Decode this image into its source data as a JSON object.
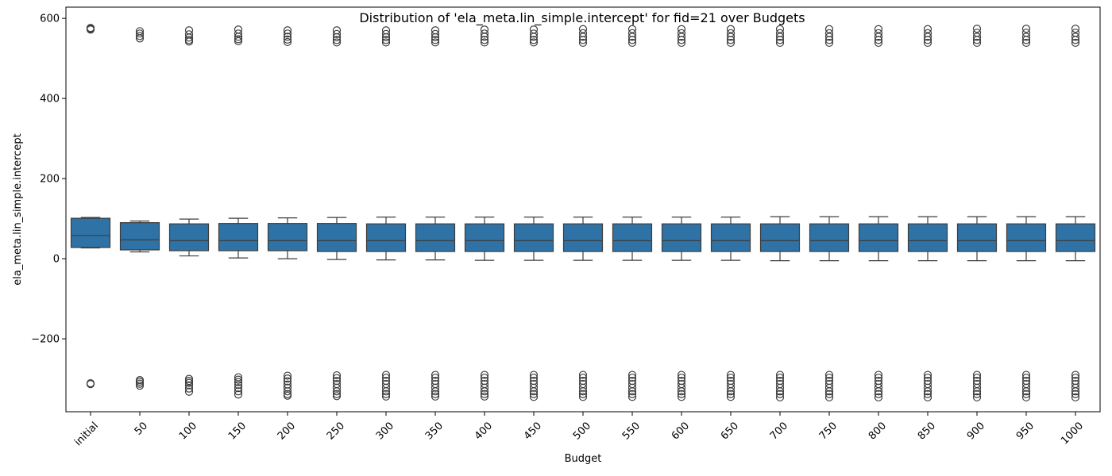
{
  "chart_data": {
    "type": "box",
    "title": "Distribution of 'ela_meta.lin_simple.intercept' for fid=21 over Budgets",
    "xlabel": "Budget",
    "ylabel": "ela_meta.lin_simple.intercept",
    "ylim": [
      -382,
      628
    ],
    "yticks": [
      -200,
      0,
      200,
      400,
      600
    ],
    "ytick_labels": [
      "−200",
      "0",
      "200",
      "400",
      "600"
    ],
    "grid": false,
    "box_color": "#2f72a6",
    "line_color": "#3d3d3d",
    "categories": [
      "initial",
      "50",
      "100",
      "150",
      "200",
      "250",
      "300",
      "350",
      "400",
      "450",
      "500",
      "550",
      "600",
      "650",
      "700",
      "750",
      "800",
      "850",
      "900",
      "950",
      "1000"
    ],
    "boxes": [
      {
        "q1": 28,
        "median": 58,
        "q3": 101,
        "whisker_low": 27,
        "whisker_high": 103,
        "outliers": [
          574,
          576,
          572,
          -311,
          -313
        ]
      },
      {
        "q1": 22,
        "median": 47,
        "q3": 90,
        "whisker_low": 17,
        "whisker_high": 94,
        "outliers": [
          568,
          562,
          556,
          550,
          -303,
          -307,
          -312,
          -317
        ]
      },
      {
        "q1": 20,
        "median": 45,
        "q3": 87,
        "whisker_low": 7,
        "whisker_high": 99,
        "outliers": [
          570,
          560,
          552,
          546,
          542,
          -300,
          -305,
          -310,
          -316,
          -324,
          -332
        ]
      },
      {
        "q1": 20,
        "median": 45,
        "q3": 88,
        "whisker_low": 2,
        "whisker_high": 101,
        "outliers": [
          572,
          562,
          554,
          548,
          543,
          -296,
          -302,
          -308,
          -315,
          -323,
          -331,
          -339
        ]
      },
      {
        "q1": 20,
        "median": 45,
        "q3": 88,
        "whisker_low": 0,
        "whisker_high": 102,
        "outliers": [
          570,
          562,
          554,
          547,
          541,
          -292,
          -299,
          -306,
          -314,
          -322,
          -331,
          -338,
          -342
        ]
      },
      {
        "q1": 18,
        "median": 45,
        "q3": 88,
        "whisker_low": -2,
        "whisker_high": 103,
        "outliers": [
          570,
          561,
          553,
          546,
          540,
          -291,
          -298,
          -305,
          -313,
          -322,
          -331,
          -338,
          -343
        ]
      },
      {
        "q1": 18,
        "median": 45,
        "q3": 87,
        "whisker_low": -3,
        "whisker_high": 104,
        "outliers": [
          570,
          561,
          553,
          546,
          540,
          -290,
          -297,
          -305,
          -313,
          -322,
          -331,
          -338,
          -344
        ]
      },
      {
        "q1": 18,
        "median": 45,
        "q3": 87,
        "whisker_low": -3,
        "whisker_high": 104,
        "outliers": [
          570,
          561,
          553,
          546,
          540,
          -290,
          -297,
          -305,
          -313,
          -322,
          -331,
          -338,
          -344
        ]
      },
      {
        "q1": 18,
        "median": 45,
        "q3": 87,
        "whisker_low": -4,
        "whisker_high": 104,
        "outliers": [
          572,
          562,
          554,
          546,
          540,
          -290,
          -297,
          -305,
          -313,
          -322,
          -331,
          -338,
          -344
        ]
      },
      {
        "q1": 18,
        "median": 45,
        "q3": 87,
        "whisker_low": -4,
        "whisker_high": 104,
        "outliers": [
          572,
          562,
          554,
          546,
          540,
          -290,
          -297,
          -305,
          -313,
          -322,
          -331,
          -338,
          -345
        ]
      },
      {
        "q1": 18,
        "median": 45,
        "q3": 87,
        "whisker_low": -4,
        "whisker_high": 104,
        "outliers": [
          573,
          563,
          554,
          546,
          539,
          -290,
          -297,
          -305,
          -313,
          -322,
          -331,
          -338,
          -345
        ]
      },
      {
        "q1": 18,
        "median": 45,
        "q3": 87,
        "whisker_low": -4,
        "whisker_high": 104,
        "outliers": [
          573,
          563,
          554,
          546,
          539,
          -290,
          -297,
          -305,
          -313,
          -322,
          -331,
          -338,
          -345
        ]
      },
      {
        "q1": 18,
        "median": 45,
        "q3": 87,
        "whisker_low": -4,
        "whisker_high": 104,
        "outliers": [
          573,
          563,
          554,
          546,
          539,
          -290,
          -297,
          -305,
          -313,
          -322,
          -331,
          -338,
          -345
        ]
      },
      {
        "q1": 18,
        "median": 45,
        "q3": 87,
        "whisker_low": -4,
        "whisker_high": 104,
        "outliers": [
          573,
          563,
          554,
          546,
          539,
          -290,
          -297,
          -305,
          -313,
          -322,
          -331,
          -338,
          -345
        ]
      },
      {
        "q1": 18,
        "median": 45,
        "q3": 87,
        "whisker_low": -5,
        "whisker_high": 105,
        "outliers": [
          573,
          563,
          554,
          546,
          539,
          -290,
          -297,
          -305,
          -313,
          -322,
          -331,
          -338,
          -346
        ]
      },
      {
        "q1": 18,
        "median": 45,
        "q3": 87,
        "whisker_low": -5,
        "whisker_high": 105,
        "outliers": [
          573,
          563,
          554,
          546,
          539,
          -290,
          -297,
          -305,
          -313,
          -322,
          -331,
          -338,
          -346
        ]
      },
      {
        "q1": 18,
        "median": 45,
        "q3": 87,
        "whisker_low": -5,
        "whisker_high": 105,
        "outliers": [
          573,
          563,
          554,
          546,
          539,
          -290,
          -297,
          -305,
          -313,
          -322,
          -331,
          -338,
          -346
        ]
      },
      {
        "q1": 18,
        "median": 45,
        "q3": 87,
        "whisker_low": -5,
        "whisker_high": 105,
        "outliers": [
          573,
          563,
          554,
          546,
          539,
          -290,
          -297,
          -305,
          -313,
          -322,
          -331,
          -338,
          -346
        ]
      },
      {
        "q1": 18,
        "median": 45,
        "q3": 87,
        "whisker_low": -5,
        "whisker_high": 105,
        "outliers": [
          574,
          564,
          554,
          546,
          539,
          -290,
          -297,
          -305,
          -313,
          -322,
          -331,
          -338,
          -346
        ]
      },
      {
        "q1": 18,
        "median": 45,
        "q3": 87,
        "whisker_low": -5,
        "whisker_high": 105,
        "outliers": [
          574,
          564,
          554,
          546,
          539,
          -290,
          -297,
          -305,
          -313,
          -322,
          -331,
          -338,
          -346
        ]
      },
      {
        "q1": 18,
        "median": 45,
        "q3": 87,
        "whisker_low": -5,
        "whisker_high": 105,
        "outliers": [
          574,
          564,
          554,
          546,
          539,
          -290,
          -297,
          -305,
          -313,
          -322,
          -331,
          -338,
          -346
        ]
      }
    ]
  }
}
